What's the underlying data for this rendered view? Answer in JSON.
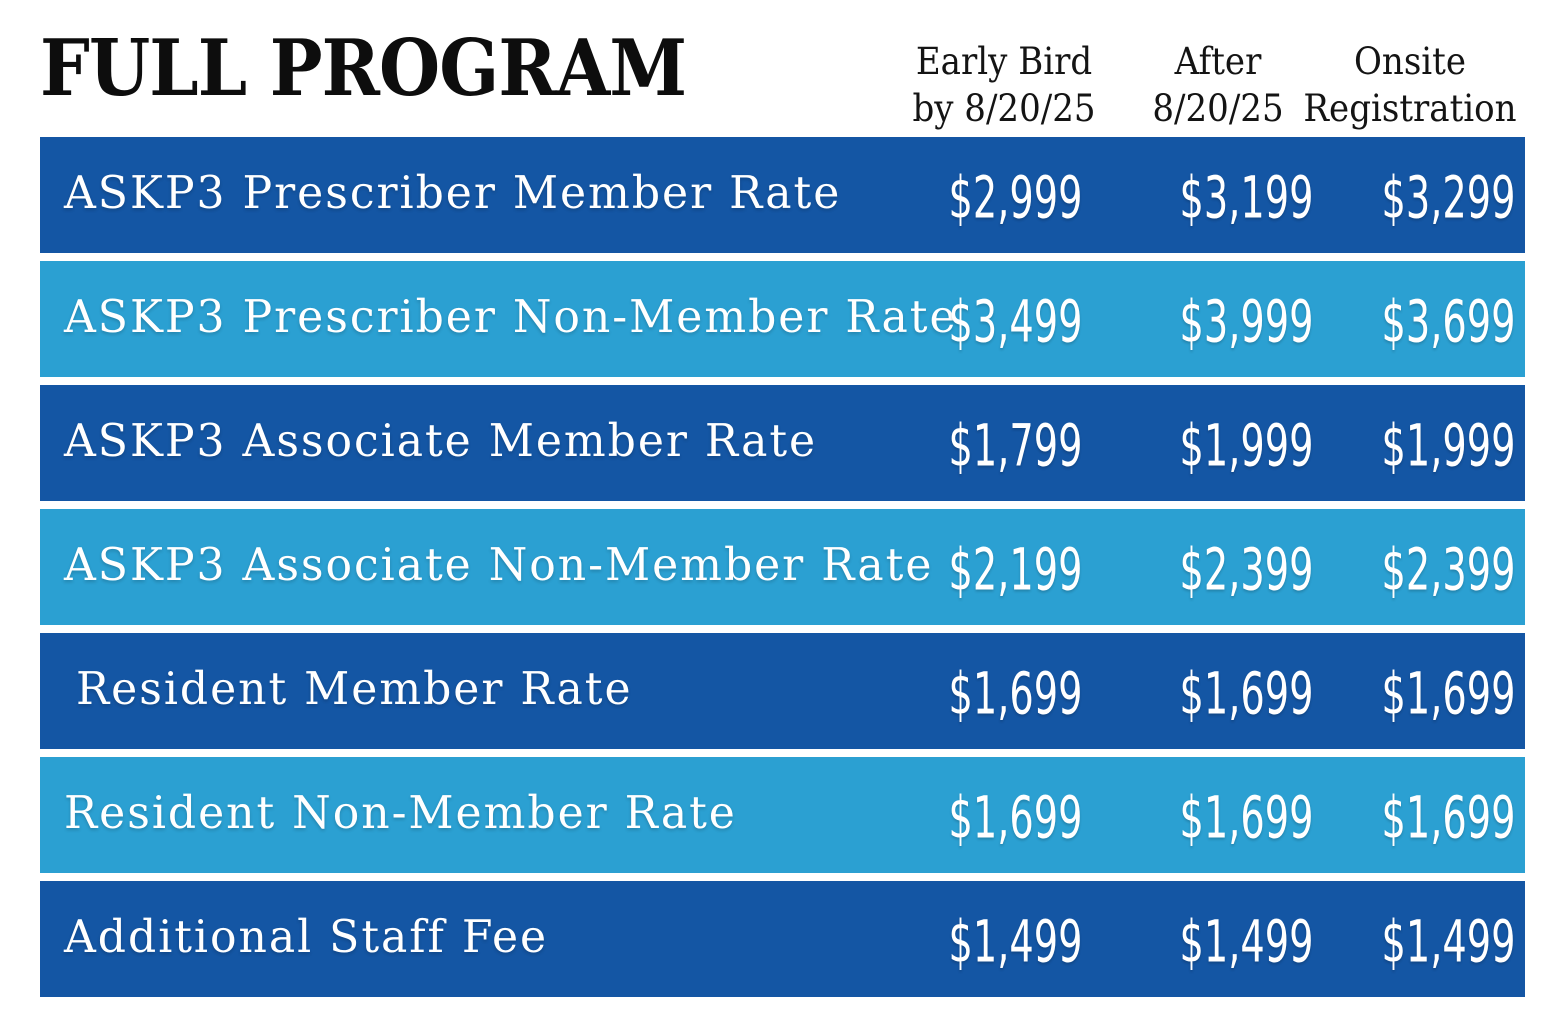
{
  "title": "FULL PROGRAM",
  "columns": [
    {
      "line1": "Early Bird",
      "line2": "by 8/20/25"
    },
    {
      "line1": "After",
      "line2": "8/20/25"
    },
    {
      "line1": "Onsite",
      "line2": "Registration"
    }
  ],
  "rows": [
    {
      "label": "ASKP3 Prescriber Member Rate",
      "values": [
        "$2,999",
        "$3,199",
        "$3,299"
      ]
    },
    {
      "label": "ASKP3 Prescriber Non-Member Rate",
      "values": [
        "$3,499",
        "$3,999",
        "$3,699"
      ]
    },
    {
      "label": "ASKP3 Associate Member Rate",
      "values": [
        "$1,799",
        "$1,999",
        "$1,999"
      ]
    },
    {
      "label": "ASKP3 Associate Non-Member Rate",
      "values": [
        "$2,199",
        "$2,399",
        "$2,399"
      ]
    },
    {
      "label": "Resident Member Rate",
      "values": [
        "$1,699",
        "$1,699",
        "$1,699"
      ]
    },
    {
      "label": "Resident Non-Member Rate",
      "values": [
        "$1,699",
        "$1,699",
        "$1,699"
      ]
    },
    {
      "label": "Additional Staff Fee",
      "values": [
        "$1,499",
        "$1,499",
        "$1,499"
      ]
    }
  ],
  "colors": {
    "row_dark": "#1456a4",
    "row_light": "#2ba0d2",
    "row_text": "#ffffff",
    "title_text": "#0d0d0d",
    "header_text": "#141414",
    "background": "#ffffff"
  },
  "chart_data": {
    "type": "table",
    "title": "FULL PROGRAM",
    "columns": [
      "Early Bird by 8/20/25",
      "After 8/20/25",
      "Onsite Registration"
    ],
    "rows": [
      {
        "label": "ASKP3 Prescriber Member Rate",
        "early_bird": 2999,
        "after": 3199,
        "onsite": 3299
      },
      {
        "label": "ASKP3 Prescriber Non-Member Rate",
        "early_bird": 3499,
        "after": 3999,
        "onsite": 3699
      },
      {
        "label": "ASKP3 Associate Member Rate",
        "early_bird": 1799,
        "after": 1999,
        "onsite": 1999
      },
      {
        "label": "ASKP3 Associate Non-Member Rate",
        "early_bird": 2199,
        "after": 2399,
        "onsite": 2399
      },
      {
        "label": "Resident Member Rate",
        "early_bird": 1699,
        "after": 1699,
        "onsite": 1699
      },
      {
        "label": "Resident Non-Member Rate",
        "early_bird": 1699,
        "after": 1699,
        "onsite": 1699
      },
      {
        "label": "Additional Staff Fee",
        "early_bird": 1499,
        "after": 1499,
        "onsite": 1499
      }
    ],
    "currency": "USD",
    "layout": "alternating dark/light blue row bars, white background, prices right of labels in 3 columns"
  }
}
